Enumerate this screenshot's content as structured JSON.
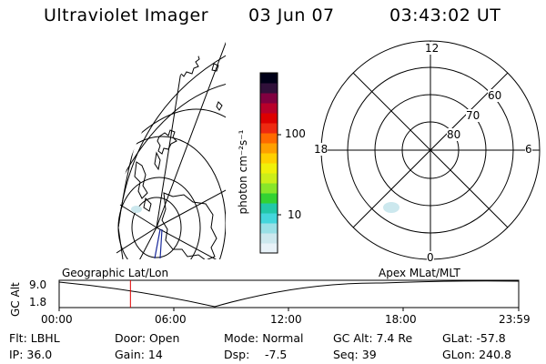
{
  "header": {
    "instrument": "Ultraviolet Imager",
    "date": "03 Jun 07",
    "time": "03:43:02 UT"
  },
  "colorbar": {
    "unit_label": "photon cm⁻²s⁻¹",
    "ticks": [
      "100",
      "10"
    ],
    "colors": [
      "#e8f2f8",
      "#cce8ee",
      "#99e0e6",
      "#44d6dc",
      "#22c8a8",
      "#33d233",
      "#88e62a",
      "#ccee1a",
      "#f0f00a",
      "#ffd000",
      "#ffa000",
      "#ff6a00",
      "#ee2a10",
      "#dd0000",
      "#b8002a",
      "#800040",
      "#30103a",
      "#000018"
    ]
  },
  "geo_map": {
    "label": "Geographic Lat/Lon"
  },
  "polar_plot": {
    "label": "Apex MLat/MLT",
    "mlt_labels": {
      "top": "12",
      "left": "18",
      "right": "6",
      "bottom": "0"
    },
    "lat_labels": [
      "60",
      "70",
      "80"
    ]
  },
  "timeline": {
    "ylabel": "GC Alt",
    "ytick_high": "9.0",
    "ytick_low": "1.8",
    "xticks": [
      "00:00",
      "06:00",
      "12:00",
      "18:00",
      "23:59"
    ],
    "current_marker_hour": 3.72
  },
  "info": {
    "flt": "Flt: LBHL",
    "ip": "IP: 36.0",
    "door": "Door: Open",
    "gain": "Gain: 14",
    "mode": "Mode: Normal",
    "dsp_label": "Dsp:",
    "dsp_value": "-7.5",
    "gc_alt": "GC Alt: 7.4 Re",
    "seq": "Seq: 39",
    "glat": "GLat: -57.8",
    "glon": "GLon: 240.8"
  }
}
